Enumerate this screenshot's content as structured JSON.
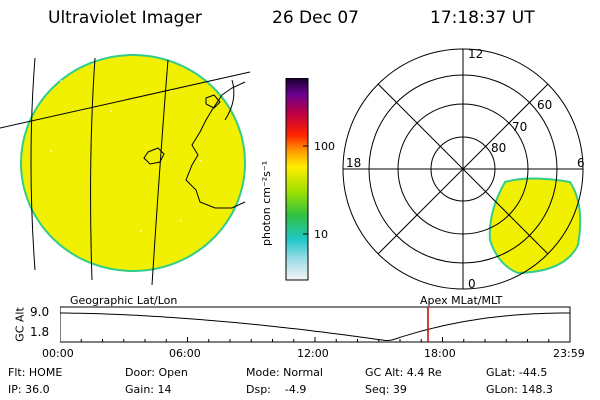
{
  "header": {
    "title": "Ultraviolet Imager",
    "date": "26 Dec 07",
    "time": "17:18:37 UT"
  },
  "colorbar": {
    "unit_label": "photon cm⁻²s⁻¹",
    "tick_100": "100",
    "tick_10": "10"
  },
  "polar": {
    "mlt_top": "12",
    "mlt_left": "18",
    "mlt_right": "6",
    "mlt_bottom": "0",
    "lat_60": "60",
    "lat_70": "70",
    "lat_80": "80"
  },
  "panel_labels": {
    "left": "Geographic Lat/Lon",
    "right": "Apex  MLat/MLT"
  },
  "altitude_plot": {
    "ylabel": "GC Alt",
    "y_top": "9.0",
    "y_bottom": "1.8",
    "x_ticks": [
      "00:00",
      "06:00",
      "12:00",
      "18:00",
      "23:59"
    ],
    "current_time_fraction": 0.7215,
    "curve_color": "#000000",
    "marker_color": "#cc0000"
  },
  "status": {
    "flt": "Flt: HOME",
    "ip": "IP: 36.0",
    "door": "Door: Open",
    "gain": "Gain: 14",
    "mode": "Mode: Normal",
    "dsp": "Dsp:    -4.9",
    "gc_alt": "GC Alt: 4.4 Re",
    "seq": "Seq: 39",
    "glat": "GLat: -44.5",
    "glon": "GLon: 148.3"
  },
  "colors": {
    "disk_fill": "#f0f000",
    "disk_edge": "#33cc88",
    "grid": "#000000"
  }
}
